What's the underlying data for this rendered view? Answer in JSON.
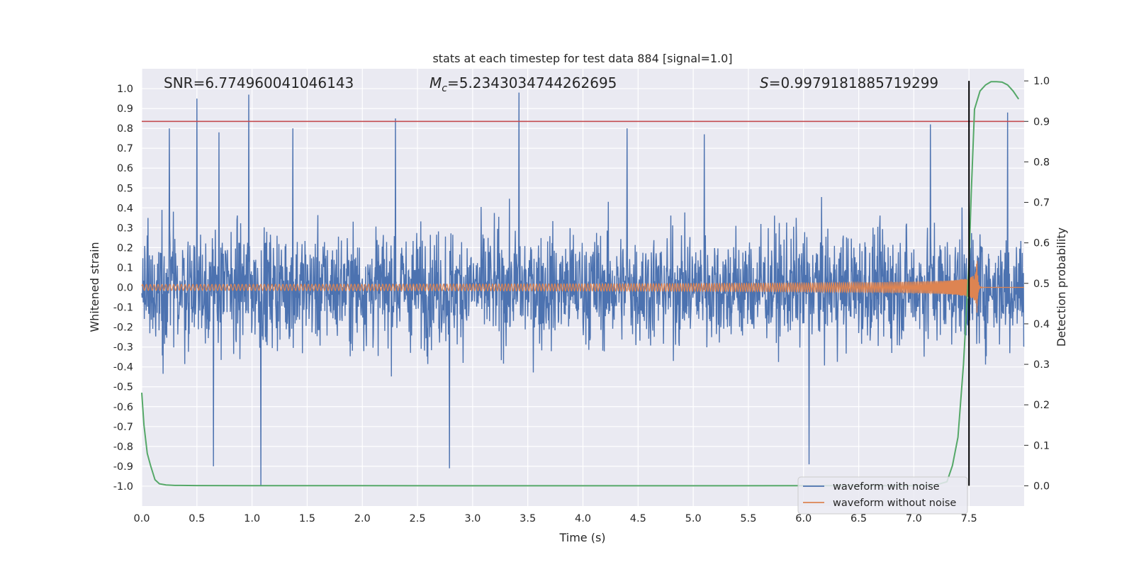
{
  "chart_data": {
    "type": "line",
    "title": "stats at each timestep for test data 884 [signal=1.0]",
    "xlabel": "Time (s)",
    "ylabel": "Whitened strain",
    "ylabel_right": "Detection probability",
    "xlim": [
      0.0,
      8.0
    ],
    "ylim": [
      -1.1,
      1.1
    ],
    "ylim_right": [
      -0.05,
      1.03
    ],
    "xticks": [
      "0.0",
      "0.5",
      "1.0",
      "1.5",
      "2.0",
      "2.5",
      "3.0",
      "3.5",
      "4.0",
      "4.5",
      "5.0",
      "5.5",
      "6.0",
      "6.5",
      "7.0",
      "7.5"
    ],
    "yticks": [
      "1.0",
      "0.9",
      "0.8",
      "0.7",
      "0.6",
      "0.5",
      "0.4",
      "0.3",
      "0.2",
      "0.1",
      "0.0",
      "-0.1",
      "-0.2",
      "-0.3",
      "-0.4",
      "-0.5",
      "-0.6",
      "-0.7",
      "-0.8",
      "-0.9",
      "-1.0"
    ],
    "yticks_right": [
      "1.0",
      "0.9",
      "0.8",
      "0.7",
      "0.6",
      "0.5",
      "0.4",
      "0.3",
      "0.2",
      "0.1",
      "0.0"
    ],
    "grid": true,
    "legend_placement": "bottom-right",
    "annotations": {
      "snr": {
        "label": "SNR",
        "value": "=6.774960041046143"
      },
      "mc": {
        "symbol": "M",
        "subscript": "c",
        "value": "=5.2343034744262695"
      },
      "s": {
        "symbol": "S",
        "value": "=0.9979181885719299"
      }
    },
    "threshold_line": {
      "y_right": 0.9,
      "color": "#c44e52"
    },
    "vertical_line": {
      "x": 7.5,
      "color": "#000000"
    },
    "series": [
      {
        "name": "waveform with noise",
        "color": "#4c72b0",
        "axis": "left",
        "envelope_peaks": [
          [
            0.5,
            0.95
          ],
          [
            0.97,
            0.97
          ],
          [
            1.08,
            -1.0
          ],
          [
            3.42,
            0.98
          ],
          [
            2.79,
            -0.91
          ],
          [
            0.65,
            -0.9
          ],
          [
            0.25,
            0.8
          ],
          [
            0.7,
            0.78
          ],
          [
            1.37,
            0.8
          ],
          [
            2.3,
            0.85
          ],
          [
            4.4,
            0.8
          ],
          [
            5.1,
            0.77
          ],
          [
            6.05,
            -0.89
          ],
          [
            7.15,
            0.82
          ],
          [
            7.85,
            0.88
          ]
        ]
      },
      {
        "name": "waveform without noise",
        "color": "#dd8452",
        "axis": "left",
        "amplitude_start": 0.015,
        "amplitude_peak": 0.2,
        "merger_time": 7.57
      },
      {
        "name": "",
        "color": "#55a868",
        "axis": "right",
        "x": [
          0.0,
          0.02,
          0.05,
          0.08,
          0.12,
          0.16,
          0.22,
          0.3,
          0.5,
          1.0,
          3.0,
          5.0,
          7.0,
          7.2,
          7.3,
          7.35,
          7.4,
          7.45,
          7.5,
          7.52,
          7.55,
          7.6,
          7.65,
          7.7,
          7.75,
          7.8,
          7.85,
          7.9,
          7.95
        ],
        "y": [
          0.23,
          0.15,
          0.08,
          0.05,
          0.015,
          0.005,
          0.002,
          0.001,
          0.0005,
          0.0003,
          0.0002,
          0.0002,
          0.0003,
          0.002,
          0.01,
          0.05,
          0.12,
          0.3,
          0.55,
          0.72,
          0.93,
          0.975,
          0.99,
          0.998,
          0.998,
          0.997,
          0.99,
          0.975,
          0.955
        ]
      }
    ]
  }
}
